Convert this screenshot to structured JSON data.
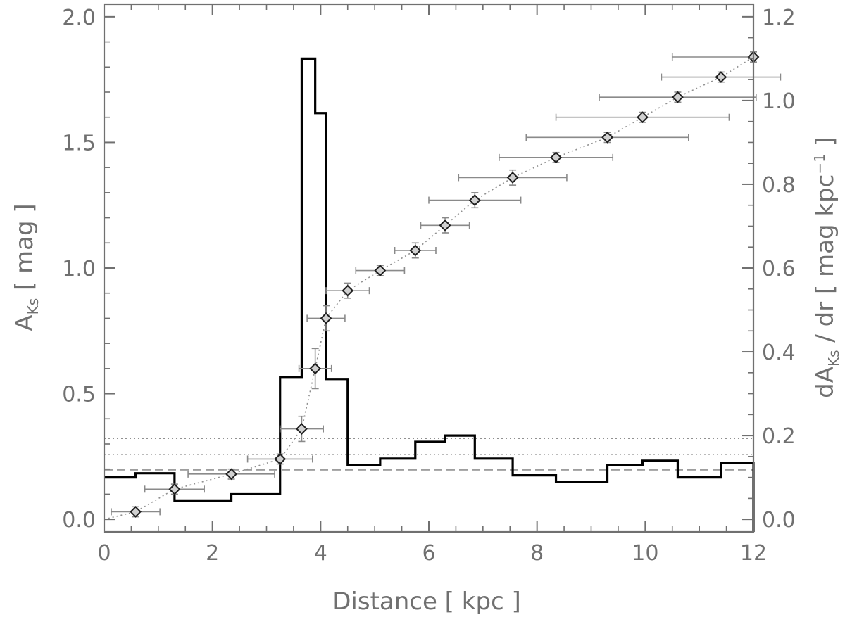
{
  "chart_data": {
    "type": "line",
    "xlabel": "Distance [ kpc ]",
    "ylabel_left": {
      "main": "A",
      "subscript": "Ks",
      "unit": " [ mag ]"
    },
    "ylabel_right": {
      "main": "dA",
      "subscript": "Ks",
      "middle": " / dr [ mag kpc",
      "superscript": "−1",
      "end": " ]"
    },
    "xlim": [
      0,
      12
    ],
    "ylim_left": [
      -0.05,
      2.05
    ],
    "ylim_right": [
      -0.03,
      1.23
    ],
    "x_ticks": [
      0,
      2,
      4,
      6,
      8,
      10,
      12
    ],
    "x_tick_labels": [
      "0",
      "2",
      "4",
      "6",
      "8",
      "10",
      "12"
    ],
    "y_left_ticks": [
      0.0,
      0.5,
      1.0,
      1.5,
      2.0
    ],
    "y_left_tick_labels": [
      "0.0",
      "0.5",
      "1.0",
      "1.5",
      "2.0"
    ],
    "y_right_ticks": [
      0.0,
      0.2,
      0.4,
      0.6,
      0.8,
      1.0,
      1.2
    ],
    "y_right_tick_labels": [
      "0.0",
      "0.2",
      "0.4",
      "0.6",
      "0.8",
      "1.0",
      "1.2"
    ],
    "series": [
      {
        "kind": "errorbar",
        "axis": "left",
        "marker": "diamond",
        "color": "#707070",
        "points": [
          {
            "x": 0.58,
            "y": 0.03,
            "xerr": [
              0.45,
              0.45
            ],
            "yerr": [
              0.02,
              0.02
            ]
          },
          {
            "x": 1.3,
            "y": 0.12,
            "xerr": [
              0.55,
              0.55
            ],
            "yerr": [
              0.02,
              0.02
            ]
          },
          {
            "x": 2.35,
            "y": 0.18,
            "xerr": [
              0.8,
              0.8
            ],
            "yerr": [
              0.02,
              0.02
            ]
          },
          {
            "x": 3.25,
            "y": 0.24,
            "xerr": [
              0.6,
              0.6
            ],
            "yerr": [
              0.02,
              0.02
            ]
          },
          {
            "x": 3.65,
            "y": 0.36,
            "xerr": [
              0.4,
              0.4
            ],
            "yerr": [
              0.05,
              0.05
            ]
          },
          {
            "x": 3.9,
            "y": 0.6,
            "xerr": [
              0.3,
              0.3
            ],
            "yerr": [
              0.08,
              0.08
            ]
          },
          {
            "x": 4.1,
            "y": 0.8,
            "xerr": [
              0.35,
              0.35
            ],
            "yerr": [
              0.05,
              0.05
            ]
          },
          {
            "x": 4.5,
            "y": 0.91,
            "xerr": [
              0.4,
              0.4
            ],
            "yerr": [
              0.03,
              0.03
            ]
          },
          {
            "x": 5.1,
            "y": 0.99,
            "xerr": [
              0.45,
              0.45
            ],
            "yerr": [
              0.02,
              0.02
            ]
          },
          {
            "x": 5.75,
            "y": 1.07,
            "xerr": [
              0.38,
              0.38
            ],
            "yerr": [
              0.03,
              0.03
            ]
          },
          {
            "x": 6.3,
            "y": 1.17,
            "xerr": [
              0.45,
              0.45
            ],
            "yerr": [
              0.03,
              0.03
            ]
          },
          {
            "x": 6.85,
            "y": 1.27,
            "xerr": [
              0.85,
              0.85
            ],
            "yerr": [
              0.03,
              0.03
            ]
          },
          {
            "x": 7.55,
            "y": 1.36,
            "xerr": [
              1.0,
              1.0
            ],
            "yerr": [
              0.03,
              0.03
            ]
          },
          {
            "x": 8.35,
            "y": 1.44,
            "xerr": [
              1.05,
              1.05
            ],
            "yerr": [
              0.02,
              0.02
            ]
          },
          {
            "x": 9.3,
            "y": 1.52,
            "xerr": [
              1.5,
              1.5
            ],
            "yerr": [
              0.02,
              0.02
            ]
          },
          {
            "x": 9.95,
            "y": 1.6,
            "xerr": [
              1.6,
              1.6
            ],
            "yerr": [
              0.02,
              0.02
            ]
          },
          {
            "x": 10.6,
            "y": 1.68,
            "xerr": [
              1.45,
              1.45
            ],
            "yerr": [
              0.02,
              0.02
            ]
          },
          {
            "x": 11.4,
            "y": 1.76,
            "xerr": [
              1.1,
              1.1
            ],
            "yerr": [
              0.02,
              0.02
            ]
          },
          {
            "x": 12.0,
            "y": 1.84,
            "xerr": [
              1.5,
              0.0
            ],
            "yerr": [
              0.02,
              0.02
            ]
          }
        ]
      },
      {
        "kind": "dotted-line",
        "axis": "left",
        "color": "#909090",
        "points": [
          {
            "x": 0.0,
            "y": 0.0
          },
          {
            "x": 0.58,
            "y": 0.03
          },
          {
            "x": 1.3,
            "y": 0.12
          },
          {
            "x": 2.35,
            "y": 0.18
          },
          {
            "x": 3.25,
            "y": 0.24
          },
          {
            "x": 3.65,
            "y": 0.36
          },
          {
            "x": 3.9,
            "y": 0.6
          },
          {
            "x": 4.1,
            "y": 0.8
          },
          {
            "x": 4.5,
            "y": 0.91
          },
          {
            "x": 5.1,
            "y": 0.99
          },
          {
            "x": 5.75,
            "y": 1.07
          },
          {
            "x": 6.3,
            "y": 1.17
          },
          {
            "x": 6.85,
            "y": 1.27
          },
          {
            "x": 7.55,
            "y": 1.36
          },
          {
            "x": 8.35,
            "y": 1.44
          },
          {
            "x": 9.3,
            "y": 1.52
          },
          {
            "x": 9.95,
            "y": 1.6
          },
          {
            "x": 10.6,
            "y": 1.68
          },
          {
            "x": 11.4,
            "y": 1.76
          },
          {
            "x": 12.0,
            "y": 1.84
          }
        ]
      },
      {
        "kind": "step",
        "axis": "right",
        "color": "#000000",
        "bins": [
          {
            "x0": 0.0,
            "x1": 0.58,
            "y": 0.1
          },
          {
            "x0": 0.58,
            "x1": 1.3,
            "y": 0.11
          },
          {
            "x0": 1.3,
            "x1": 2.35,
            "y": 0.045
          },
          {
            "x0": 2.35,
            "x1": 3.25,
            "y": 0.06
          },
          {
            "x0": 3.25,
            "x1": 3.65,
            "y": 0.34
          },
          {
            "x0": 3.65,
            "x1": 3.9,
            "y": 1.1
          },
          {
            "x0": 3.9,
            "x1": 4.1,
            "y": 0.97
          },
          {
            "x0": 4.1,
            "x1": 4.5,
            "y": 0.335
          },
          {
            "x0": 4.5,
            "x1": 5.1,
            "y": 0.13
          },
          {
            "x0": 5.1,
            "x1": 5.75,
            "y": 0.145
          },
          {
            "x0": 5.75,
            "x1": 6.3,
            "y": 0.185
          },
          {
            "x0": 6.3,
            "x1": 6.85,
            "y": 0.2
          },
          {
            "x0": 6.85,
            "x1": 7.55,
            "y": 0.145
          },
          {
            "x0": 7.55,
            "x1": 8.35,
            "y": 0.105
          },
          {
            "x0": 8.35,
            "x1": 9.3,
            "y": 0.09
          },
          {
            "x0": 9.3,
            "x1": 9.95,
            "y": 0.13
          },
          {
            "x0": 9.95,
            "x1": 10.6,
            "y": 0.14
          },
          {
            "x0": 10.6,
            "x1": 11.4,
            "y": 0.1
          },
          {
            "x0": 11.4,
            "x1": 12.0,
            "y": 0.135
          }
        ]
      }
    ],
    "reference_lines": [
      {
        "axis": "right",
        "y": 0.193,
        "style": "dotted",
        "color": "#909090"
      },
      {
        "axis": "right",
        "y": 0.155,
        "style": "dotted",
        "color": "#909090"
      },
      {
        "axis": "right",
        "y": 0.118,
        "style": "dashed",
        "color": "#909090"
      }
    ],
    "grid": false
  }
}
